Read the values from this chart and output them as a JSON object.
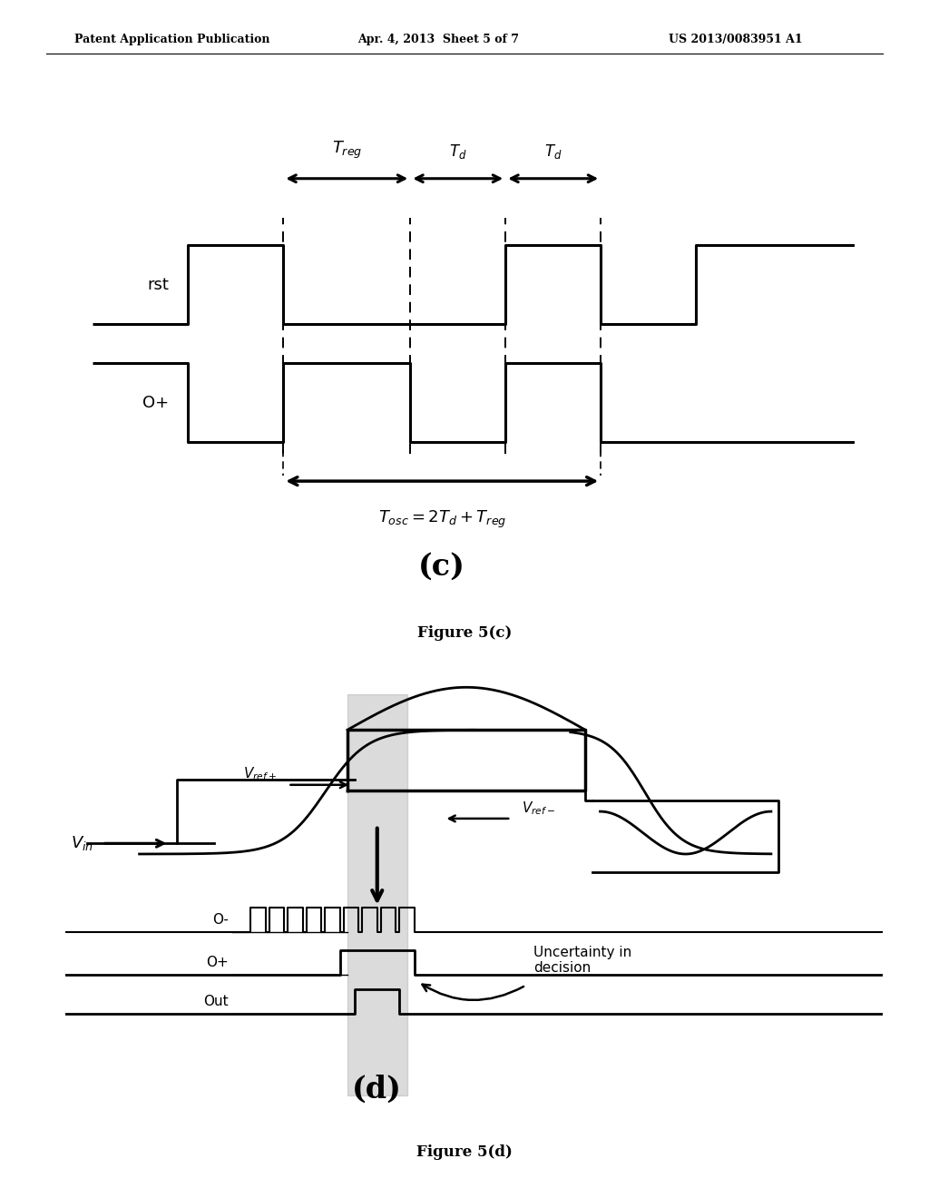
{
  "header_left": "Patent Application Publication",
  "header_mid": "Apr. 4, 2013  Sheet 5 of 7",
  "header_right": "US 2013/0083951 A1",
  "bg_color": "#ffffff"
}
